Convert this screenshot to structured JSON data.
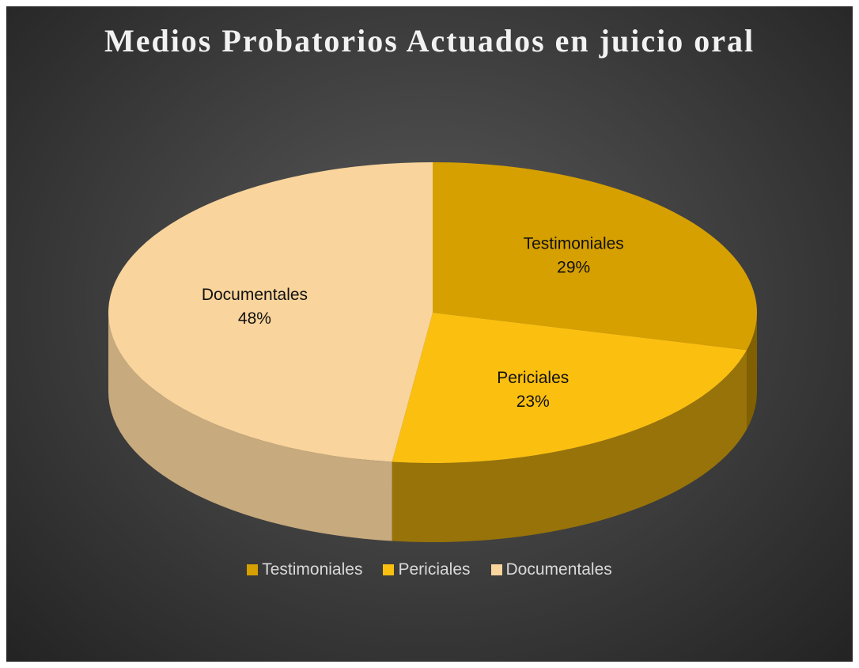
{
  "chart_data": {
    "type": "pie",
    "title": "Medios Probatorios Actuados en juicio oral",
    "categories": [
      "Testimoniales",
      "Periciales",
      "Documentales"
    ],
    "values": [
      29,
      23,
      48
    ],
    "value_labels": [
      "29%",
      "23%",
      "48%"
    ],
    "colors": [
      "#d6a000",
      "#fbbf10",
      "#f9d49c"
    ],
    "legend": "bottom"
  }
}
